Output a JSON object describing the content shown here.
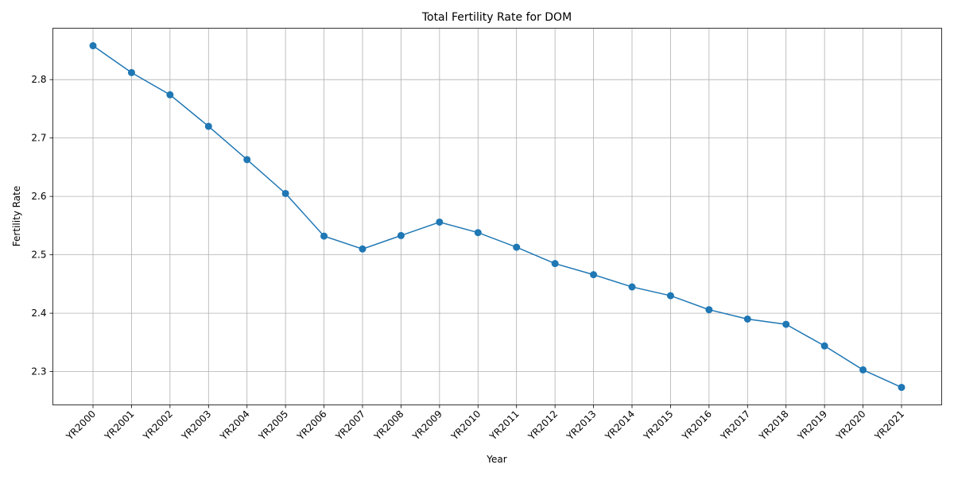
{
  "chart_data": {
    "type": "line",
    "title": "Total Fertility Rate for DOM",
    "xlabel": "Year",
    "ylabel": "Fertility Rate",
    "categories": [
      "YR2000",
      "YR2001",
      "YR2002",
      "YR2003",
      "YR2004",
      "YR2005",
      "YR2006",
      "YR2007",
      "YR2008",
      "YR2009",
      "YR2010",
      "YR2011",
      "YR2012",
      "YR2013",
      "YR2014",
      "YR2015",
      "YR2016",
      "YR2017",
      "YR2018",
      "YR2019",
      "YR2020",
      "YR2021"
    ],
    "series": [
      {
        "values": [
          2.858,
          2.812,
          2.774,
          2.72,
          2.663,
          2.605,
          2.532,
          2.51,
          2.533,
          2.556,
          2.538,
          2.513,
          2.485,
          2.466,
          2.445,
          2.43,
          2.406,
          2.39,
          2.381,
          2.344,
          2.303,
          2.273
        ],
        "color": "#1f77b4",
        "marker": "circle"
      }
    ],
    "ylim": [
      2.243,
      2.888
    ],
    "yticks": [
      "2.3",
      "2.4",
      "2.5",
      "2.6",
      "2.7",
      "2.8"
    ],
    "grid": true,
    "xtick_rotation": 45
  }
}
